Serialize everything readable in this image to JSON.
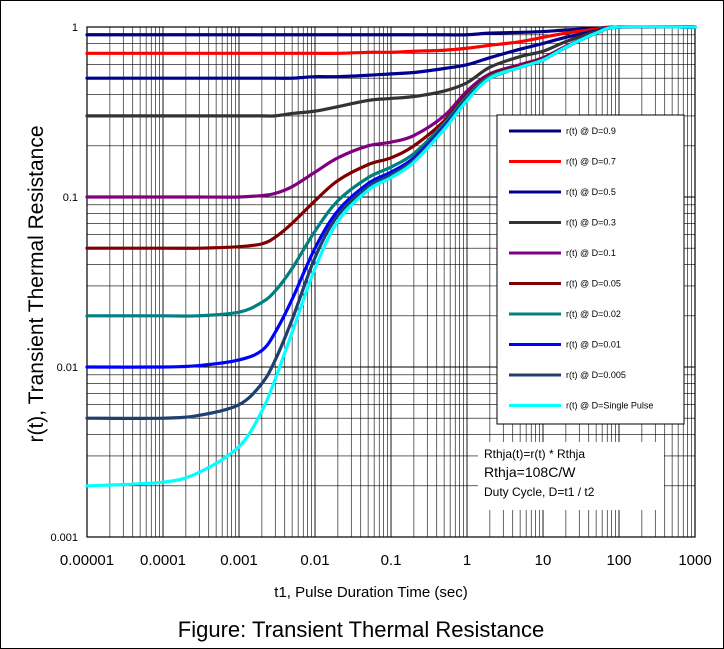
{
  "caption": "Figure:  Transient Thermal Resistance",
  "chart_data": {
    "type": "line",
    "title": "",
    "xlabel": "t1, Pulse Duration Time (sec)",
    "ylabel": "r(t),  Transient Thermal Resistance",
    "xscale": "log",
    "yscale": "log",
    "xlim": [
      1e-05,
      1000
    ],
    "ylim": [
      0.001,
      1
    ],
    "x_ticks": [
      "0.00001",
      "0.0001",
      "0.001",
      "0.01",
      "0.1",
      "1",
      "10",
      "100",
      "1000"
    ],
    "y_ticks": [
      "1",
      "0.1",
      "0.01",
      "0.001"
    ],
    "grid": true,
    "legend_position": "right",
    "x": [
      1e-05,
      0.0001,
      0.0003,
      0.001,
      0.002,
      0.003,
      0.005,
      0.01,
      0.02,
      0.05,
      0.1,
      0.2,
      0.5,
      1,
      2,
      5,
      10,
      20,
      50,
      100,
      1000
    ],
    "series": [
      {
        "name": "r(t) @ D=0.9",
        "color": "#000080",
        "values": [
          0.9,
          0.9,
          0.9,
          0.9,
          0.9,
          0.9,
          0.9,
          0.9,
          0.9,
          0.9,
          0.9,
          0.9,
          0.9,
          0.9,
          0.92,
          0.93,
          0.94,
          0.96,
          0.98,
          1.0,
          1.0
        ]
      },
      {
        "name": "r(t) @ D=0.7",
        "color": "#ff0000",
        "values": [
          0.7,
          0.7,
          0.7,
          0.7,
          0.7,
          0.7,
          0.7,
          0.7,
          0.7,
          0.71,
          0.71,
          0.72,
          0.73,
          0.75,
          0.78,
          0.82,
          0.87,
          0.92,
          0.97,
          1.0,
          1.0
        ]
      },
      {
        "name": "r(t) @ D=0.5",
        "color": "#000090",
        "values": [
          0.5,
          0.5,
          0.5,
          0.5,
          0.5,
          0.5,
          0.5,
          0.51,
          0.51,
          0.52,
          0.53,
          0.54,
          0.57,
          0.6,
          0.66,
          0.74,
          0.8,
          0.87,
          0.95,
          1.0,
          1.0
        ]
      },
      {
        "name": "r(t) @ D=0.3",
        "color": "#333333",
        "values": [
          0.3,
          0.3,
          0.3,
          0.3,
          0.3,
          0.3,
          0.31,
          0.32,
          0.34,
          0.37,
          0.38,
          0.39,
          0.42,
          0.47,
          0.58,
          0.67,
          0.72,
          0.82,
          0.94,
          1.0,
          1.0
        ]
      },
      {
        "name": "r(t) @ D=0.1",
        "color": "#800080",
        "values": [
          0.1,
          0.1,
          0.1,
          0.1,
          0.102,
          0.105,
          0.115,
          0.14,
          0.17,
          0.2,
          0.21,
          0.23,
          0.3,
          0.42,
          0.53,
          0.6,
          0.66,
          0.77,
          0.92,
          1.0,
          1.0
        ]
      },
      {
        "name": "r(t) @ D=0.05",
        "color": "#800000",
        "values": [
          0.05,
          0.05,
          0.05,
          0.051,
          0.053,
          0.058,
          0.07,
          0.095,
          0.125,
          0.155,
          0.17,
          0.2,
          0.28,
          0.4,
          0.52,
          0.59,
          0.65,
          0.76,
          0.92,
          1.0,
          1.0
        ]
      },
      {
        "name": "r(t) @ D=0.02",
        "color": "#008080",
        "values": [
          0.02,
          0.02,
          0.02,
          0.021,
          0.024,
          0.028,
          0.038,
          0.063,
          0.095,
          0.13,
          0.15,
          0.18,
          0.27,
          0.39,
          0.51,
          0.58,
          0.64,
          0.76,
          0.92,
          1.0,
          1.0
        ]
      },
      {
        "name": "r(t) @ D=0.01",
        "color": "#0000ff",
        "values": [
          0.01,
          0.01,
          0.0102,
          0.011,
          0.0125,
          0.016,
          0.025,
          0.05,
          0.083,
          0.12,
          0.14,
          0.17,
          0.26,
          0.38,
          0.5,
          0.58,
          0.64,
          0.76,
          0.92,
          1.0,
          1.0
        ]
      },
      {
        "name": "r(t) @ D=0.005",
        "color": "#1f3f6f",
        "values": [
          0.005,
          0.005,
          0.0052,
          0.006,
          0.008,
          0.011,
          0.019,
          0.044,
          0.078,
          0.115,
          0.135,
          0.165,
          0.255,
          0.38,
          0.5,
          0.58,
          0.64,
          0.76,
          0.92,
          1.0,
          1.0
        ]
      },
      {
        "name": "r(t) @ D=Single Pulse",
        "color": "#00ffff",
        "values": [
          0.002,
          0.0021,
          0.0024,
          0.0034,
          0.0055,
          0.0085,
          0.016,
          0.038,
          0.072,
          0.11,
          0.13,
          0.16,
          0.25,
          0.37,
          0.5,
          0.58,
          0.64,
          0.76,
          0.92,
          1.0,
          1.0
        ]
      }
    ],
    "annotations": [
      "Rthja(t)=r(t) * Rthja",
      "Rthja=108C/W",
      "Duty Cycle, D=t1 /  t2"
    ]
  }
}
